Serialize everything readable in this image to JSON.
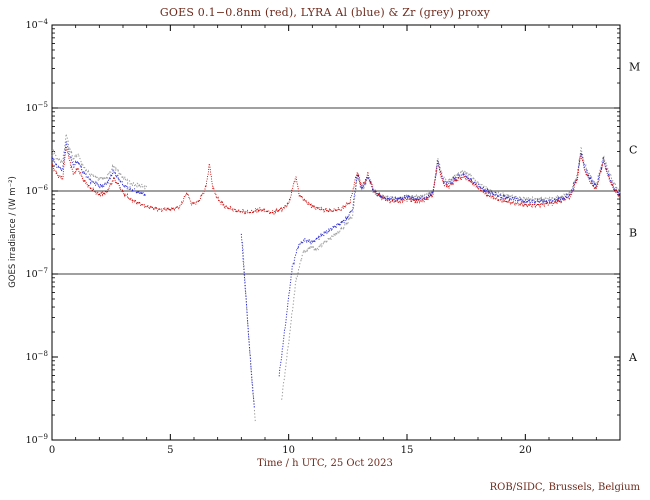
{
  "credit": "ROB/SIDC, Brussels, Belgium",
  "chart_data": {
    "type": "line",
    "title": "GOES 0.1−0.8nm (red), LYRA Al (blue) & Zr (grey) proxy",
    "xlabel": "Time / h UTC, 25 Oct 2023",
    "ylabel": "GOES irradiance / (W m⁻²)",
    "xlim": [
      0,
      24
    ],
    "x_ticks": [
      0,
      5,
      10,
      15,
      20
    ],
    "x_minor_step": 1,
    "ylim_log10": [
      -9,
      -4
    ],
    "y_ticks": [
      {
        "exp": -4,
        "label": "10^-4"
      },
      {
        "exp": -5,
        "label": "10^-5"
      },
      {
        "exp": -6,
        "label": "10^-6"
      },
      {
        "exp": -7,
        "label": "10^-7"
      },
      {
        "exp": -8,
        "label": "10^-8"
      },
      {
        "exp": -9,
        "label": "10^-9"
      }
    ],
    "hlines": [
      1e-05,
      1e-06,
      1e-07
    ],
    "class_bands": [
      {
        "label": "M",
        "log_center": -4.5
      },
      {
        "label": "C",
        "log_center": -5.5
      },
      {
        "label": "B",
        "log_center": -6.5
      },
      {
        "label": "A",
        "log_center": -8.0
      }
    ],
    "grid": false,
    "legend_position": "title",
    "series": [
      {
        "name": "GOES 0.1-0.8nm",
        "color": "#cc0000",
        "dash": "1 1.4",
        "width": 0.9,
        "segments": [
          {
            "x": [
              0,
              0.2,
              0.45,
              0.6,
              0.7,
              0.9,
              1.1,
              1.3,
              1.6,
              2.0,
              2.3,
              2.6,
              2.8,
              3.0,
              3.3,
              3.7,
              4.0,
              4.5,
              5.0,
              5.4,
              5.7,
              5.9,
              6.2,
              6.5,
              6.65,
              6.8,
              7.0,
              7.3,
              7.8,
              8.3,
              8.8,
              9.3,
              9.7,
              10.0,
              10.3,
              10.45,
              10.7,
              11.0,
              11.4,
              11.8,
              12.2,
              12.6,
              12.9,
              13.1,
              13.35,
              13.6,
              13.9,
              14.3,
              14.7,
              15.0,
              15.4,
              15.8,
              16.1,
              16.3,
              16.5,
              16.7,
              17.0,
              17.4,
              17.7,
              18.0,
              18.4,
              18.8,
              19.2,
              19.6,
              20.0,
              20.5,
              21.0,
              21.5,
              21.9,
              22.2,
              22.35,
              22.5,
              22.8,
              23.0,
              23.3,
              23.5,
              23.7,
              24.0
            ],
            "y": [
              2.1e-06,
              1.6e-06,
              1.4e-06,
              3.5e-06,
              2.6e-06,
              1.6e-06,
              1.9e-06,
              1.4e-06,
              1.1e-06,
              9e-07,
              9.5e-07,
              1.4e-06,
              1.2e-06,
              9.5e-07,
              8e-07,
              7e-07,
              6.5e-07,
              6e-07,
              6e-07,
              6.5e-07,
              9.5e-07,
              7e-07,
              7.5e-07,
              1.1e-06,
              2.1e-06,
              1.1e-06,
              8e-07,
              6.5e-07,
              5.8e-07,
              5.5e-07,
              6e-07,
              5.5e-07,
              6e-07,
              7e-07,
              1.5e-06,
              9e-07,
              7.5e-07,
              6.5e-07,
              6e-07,
              5.8e-07,
              6e-07,
              7.5e-07,
              1.7e-06,
              1.1e-06,
              1.6e-06,
              1e-06,
              8.5e-07,
              7.5e-07,
              7.5e-07,
              8e-07,
              7.5e-07,
              7.8e-07,
              9e-07,
              2.2e-06,
              1.3e-06,
              1.1e-06,
              1.3e-06,
              1.5e-06,
              1.3e-06,
              1.1e-06,
              9e-07,
              8e-07,
              7.5e-07,
              7e-07,
              6.8e-07,
              6.8e-07,
              7e-07,
              7.5e-07,
              8.5e-07,
              1.4e-06,
              2.9e-06,
              1.8e-06,
              1.2e-06,
              1.05e-06,
              2.3e-06,
              1.5e-06,
              1.1e-06,
              8.5e-07
            ]
          }
        ]
      },
      {
        "name": "LYRA Al proxy",
        "color": "#2a2ad0",
        "dash": "1.1 1.6",
        "width": 1,
        "segments": [
          {
            "x": [
              0,
              0.2,
              0.45,
              0.6,
              0.7,
              0.9,
              1.1,
              1.3,
              1.6,
              2.0,
              2.3,
              2.6,
              2.8,
              3.0,
              3.3,
              3.7,
              4.0
            ],
            "y": [
              2.6e-06,
              2e-06,
              1.8e-06,
              4e-06,
              3e-06,
              2e-06,
              2.3e-06,
              1.7e-06,
              1.35e-06,
              1.15e-06,
              1.2e-06,
              1.7e-06,
              1.45e-06,
              1.2e-06,
              1.05e-06,
              9.5e-07,
              9e-07
            ]
          },
          {
            "x": [
              8.0,
              8.2,
              8.4,
              8.55
            ],
            "y": [
              3e-07,
              5e-08,
              8e-09,
              2.5e-09
            ]
          },
          {
            "x": [
              9.6,
              9.9,
              10.15,
              10.4,
              10.7,
              11.0,
              11.3,
              11.6,
              12.0,
              12.4,
              12.7,
              12.9,
              13.1,
              13.35,
              13.6,
              13.9,
              14.3,
              14.7,
              15.0,
              15.4,
              15.8,
              16.1,
              16.3,
              16.5,
              16.7,
              17.0,
              17.4,
              17.7,
              18.0,
              18.5,
              19.0,
              19.5,
              20.0,
              20.5,
              21.0,
              21.5,
              21.9,
              22.2,
              22.35,
              22.5,
              22.8,
              23.0,
              23.3,
              23.5,
              23.7,
              24.0
            ],
            "y": [
              6e-09,
              3e-08,
              1.2e-07,
              2.2e-07,
              2.6e-07,
              2.4e-07,
              2.8e-07,
              3.2e-07,
              3.8e-07,
              4.5e-07,
              6e-07,
              1.6e-06,
              1.05e-06,
              1.5e-06,
              1e-06,
              8.5e-07,
              8e-07,
              8e-07,
              8.5e-07,
              8e-07,
              8.2e-07,
              9.5e-07,
              2.3e-06,
              1.4e-06,
              1.2e-06,
              1.4e-06,
              1.6e-06,
              1.35e-06,
              1.15e-06,
              9.5e-07,
              8.5e-07,
              8e-07,
              7.5e-07,
              7.5e-07,
              7.5e-07,
              8e-07,
              9e-07,
              1.5e-06,
              3e-06,
              1.9e-06,
              1.3e-06,
              1.1e-06,
              2.4e-06,
              1.6e-06,
              1.15e-06,
              9e-07
            ]
          }
        ]
      },
      {
        "name": "LYRA Zr proxy",
        "color": "#9a9a9a",
        "dash": "1.3 2",
        "width": 1,
        "segments": [
          {
            "x": [
              0,
              0.2,
              0.45,
              0.6,
              0.7,
              0.9,
              1.1,
              1.3,
              1.6,
              2.0,
              2.3,
              2.6,
              2.8,
              3.0,
              3.3,
              3.7,
              4.0
            ],
            "y": [
              3.2e-06,
              2.5e-06,
              2.2e-06,
              4.8e-06,
              3.6e-06,
              2.4e-06,
              2.8e-06,
              2e-06,
              1.6e-06,
              1.4e-06,
              1.45e-06,
              2e-06,
              1.7e-06,
              1.45e-06,
              1.25e-06,
              1.15e-06,
              1.1e-06
            ]
          },
          {
            "x": [
              8.05,
              8.25,
              8.45,
              8.6
            ],
            "y": [
              2.5e-07,
              3e-08,
              5e-09,
              1.6e-09
            ]
          },
          {
            "x": [
              9.7,
              10.0,
              10.3,
              10.6,
              10.9,
              11.2,
              11.5,
              11.9,
              12.3,
              12.7,
              12.9,
              13.1,
              13.35,
              13.6,
              13.9,
              14.3,
              14.7,
              15.0,
              15.4,
              15.8,
              16.1,
              16.3,
              16.5,
              16.7,
              17.0,
              17.4,
              17.7,
              18.0,
              18.5,
              19.0,
              19.5,
              20.0,
              20.5,
              21.0,
              21.5,
              21.9,
              22.2,
              22.35,
              22.5,
              22.8,
              23.0,
              23.3,
              23.5,
              23.7,
              24.0
            ],
            "y": [
              3e-09,
              1.5e-08,
              8e-08,
              1.8e-07,
              2.1e-07,
              2e-07,
              2.4e-07,
              2.9e-07,
              3.6e-07,
              5e-07,
              1.5e-06,
              1e-06,
              1.45e-06,
              9.5e-07,
              8.5e-07,
              8.2e-07,
              8.2e-07,
              8.8e-07,
              8.5e-07,
              8.8e-07,
              1e-06,
              2.5e-06,
              1.5e-06,
              1.3e-06,
              1.5e-06,
              1.75e-06,
              1.5e-06,
              1.25e-06,
              1e-06,
              9e-07,
              8.5e-07,
              8e-07,
              8e-07,
              8e-07,
              8.5e-07,
              9.5e-07,
              1.6e-06,
              3.3e-06,
              2.1e-06,
              1.4e-06,
              1.2e-06,
              2.6e-06,
              1.8e-06,
              1.3e-06,
              9.5e-07
            ]
          }
        ]
      }
    ]
  }
}
